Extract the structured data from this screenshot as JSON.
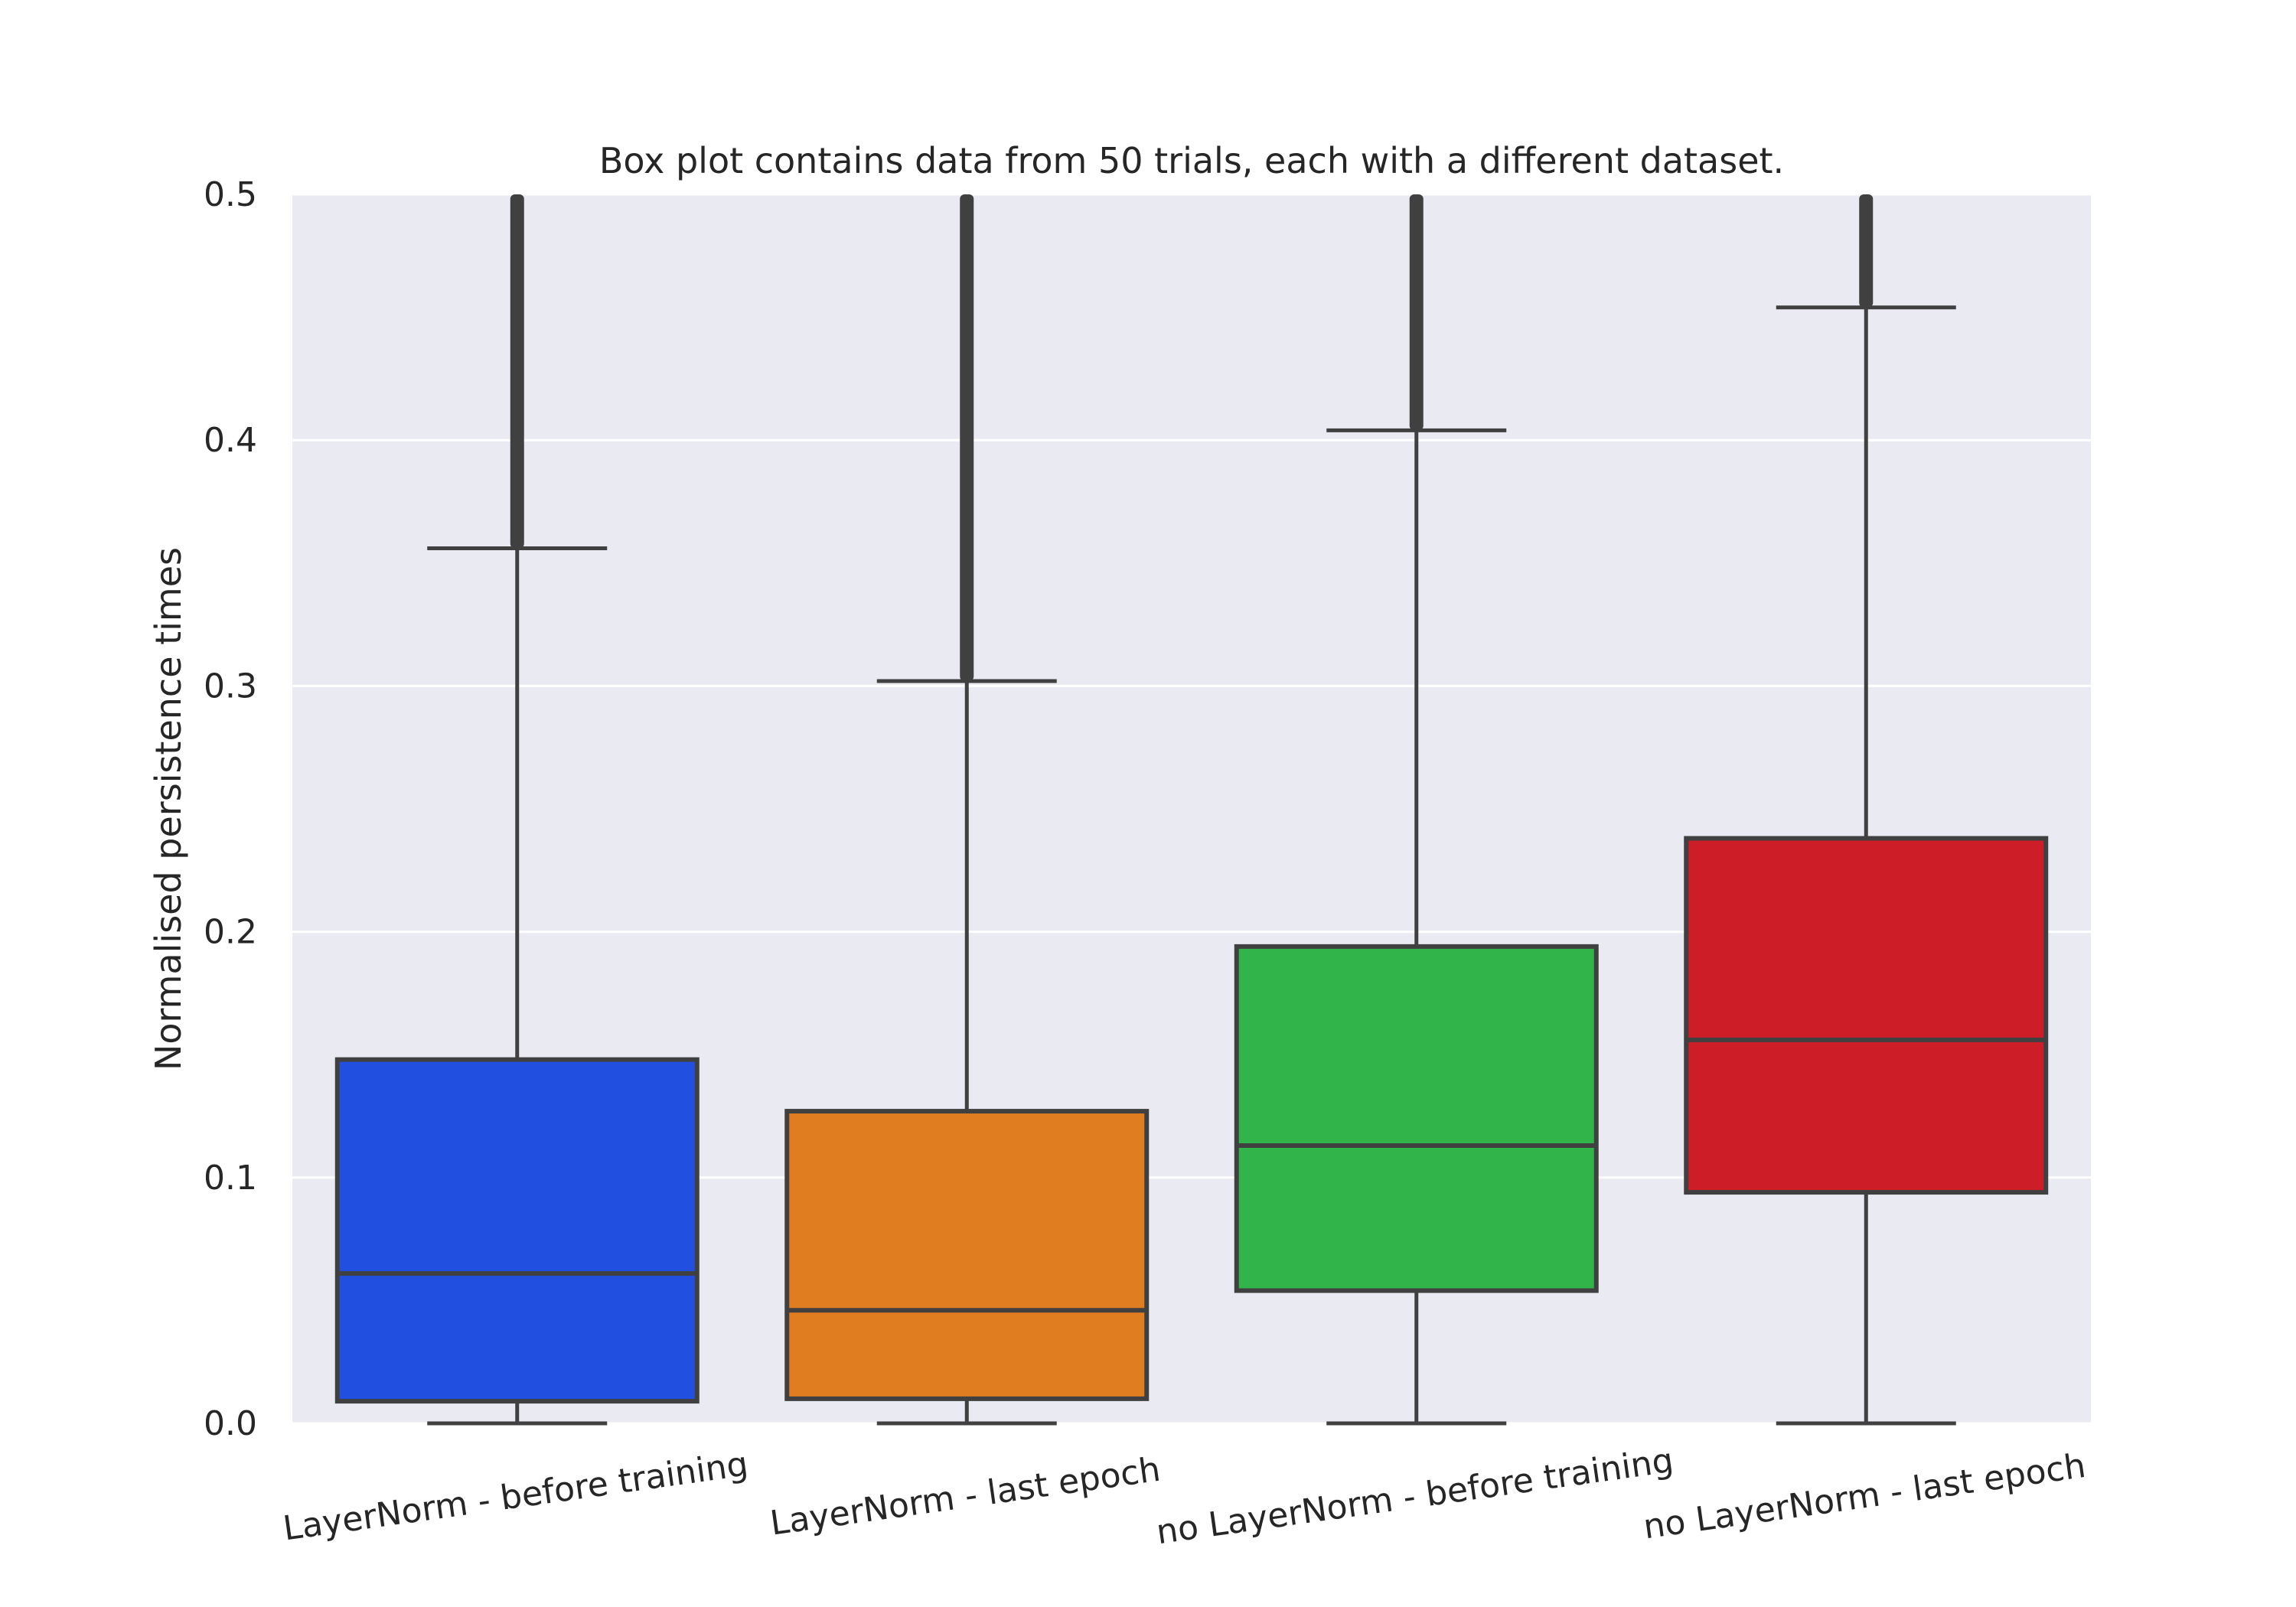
{
  "chart_data": {
    "type": "box",
    "title": "Box plot contains data from 50 trials, each with a different dataset.",
    "ylabel": "Normalised persistence times",
    "xlabel": "",
    "ylim": [
      0.0,
      0.5
    ],
    "yticks": [
      0.0,
      0.1,
      0.2,
      0.3,
      0.4,
      0.5
    ],
    "ytick_labels": [
      "0.0",
      "0.1",
      "0.2",
      "0.3",
      "0.4",
      "0.5"
    ],
    "grid": true,
    "categories": [
      "LayerNorm - before training",
      "LayerNorm - last epoch",
      "no LayerNorm - before training",
      "no LayerNorm - last epoch"
    ],
    "boxes": [
      {
        "category": "LayerNorm - before training",
        "whisker_low": 0.0,
        "q1": 0.009,
        "median": 0.061,
        "q3": 0.148,
        "whisker_high": 0.356,
        "outliers_from": 0.356,
        "outliers_to": 0.5,
        "color": "#2150e0"
      },
      {
        "category": "LayerNorm - last epoch",
        "whisker_low": 0.0,
        "q1": 0.01,
        "median": 0.046,
        "q3": 0.127,
        "whisker_high": 0.302,
        "outliers_from": 0.302,
        "outliers_to": 0.5,
        "color": "#e07d20"
      },
      {
        "category": "no LayerNorm - before training",
        "whisker_low": 0.0,
        "q1": 0.054,
        "median": 0.113,
        "q3": 0.194,
        "whisker_high": 0.404,
        "outliers_from": 0.404,
        "outliers_to": 0.5,
        "color": "#31b44a"
      },
      {
        "category": "no LayerNorm - last epoch",
        "whisker_low": 0.0,
        "q1": 0.094,
        "median": 0.156,
        "q3": 0.238,
        "whisker_high": 0.454,
        "outliers_from": 0.454,
        "outliers_to": 0.5,
        "color": "#cd1e28"
      }
    ],
    "colors": {
      "background": "#eaeaf2",
      "grid": "#ffffff",
      "line": "#404040"
    }
  }
}
